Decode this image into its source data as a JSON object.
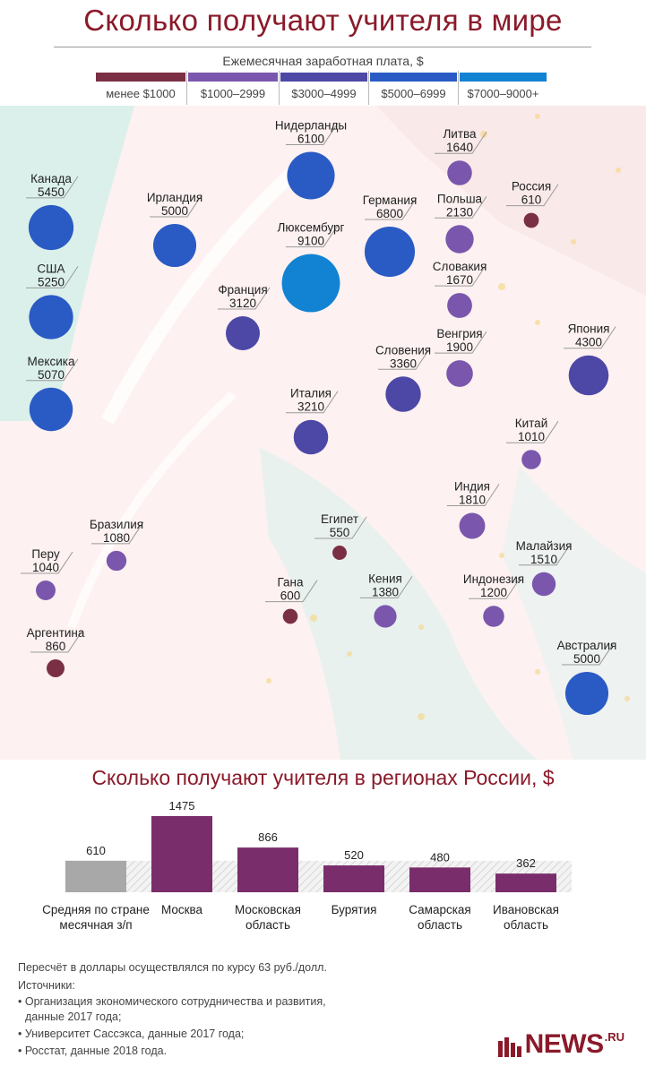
{
  "title": "Сколько получают учителя в мире",
  "legend": {
    "title": "Ежемесячная заработная плата, $",
    "bins": [
      {
        "label": "менее $1000",
        "color": "#7b2f45"
      },
      {
        "label": "$1000–2999",
        "color": "#7a57ad"
      },
      {
        "label": "$3000–4999",
        "color": "#4d48a6"
      },
      {
        "label": "$5000–6999",
        "color": "#2a5bc4"
      },
      {
        "label": "$7000–9000+",
        "color": "#1283d3"
      }
    ]
  },
  "chart_data": [
    {
      "type": "scatter",
      "title": "Сколько получают учителя в мире",
      "ylabel": "Ежемесячная заработная плата, $",
      "points": [
        {
          "country": "Нидерланды",
          "value": 6100
        },
        {
          "country": "Литва",
          "value": 1640
        },
        {
          "country": "Россия",
          "value": 610
        },
        {
          "country": "Канада",
          "value": 5450
        },
        {
          "country": "Ирландия",
          "value": 5000
        },
        {
          "country": "Германия",
          "value": 6800
        },
        {
          "country": "Польша",
          "value": 2130
        },
        {
          "country": "Люксембург",
          "value": 9100
        },
        {
          "country": "США",
          "value": 5250
        },
        {
          "country": "Словакия",
          "value": 1670
        },
        {
          "country": "Франция",
          "value": 3120
        },
        {
          "country": "Венгрия",
          "value": 1900
        },
        {
          "country": "Япония",
          "value": 4300
        },
        {
          "country": "Мексика",
          "value": 5070
        },
        {
          "country": "Словения",
          "value": 3360
        },
        {
          "country": "Италия",
          "value": 3210
        },
        {
          "country": "Китай",
          "value": 1010
        },
        {
          "country": "Индия",
          "value": 1810
        },
        {
          "country": "Бразилия",
          "value": 1080
        },
        {
          "country": "Египет",
          "value": 550
        },
        {
          "country": "Малайзия",
          "value": 1510
        },
        {
          "country": "Перу",
          "value": 1040
        },
        {
          "country": "Гана",
          "value": 600
        },
        {
          "country": "Кения",
          "value": 1380
        },
        {
          "country": "Индонезия",
          "value": 1200
        },
        {
          "country": "Аргентина",
          "value": 860
        },
        {
          "country": "Австралия",
          "value": 5000
        }
      ]
    },
    {
      "type": "bar",
      "title": "Сколько получают учителя в регионах России, $",
      "categories": [
        "Средняя по стране\nмесячная з/п",
        "Москва",
        "Московская\nобласть",
        "Бурятия",
        "Самарская\nобласть",
        "Ивановская\nобласть"
      ],
      "values": [
        610,
        1475,
        866,
        520,
        480,
        362
      ],
      "colors": [
        "#a8a8a8",
        "#7a2d6b",
        "#7a2d6b",
        "#7a2d6b",
        "#7a2d6b",
        "#7a2d6b"
      ],
      "reference_value": 610
    }
  ],
  "notes": {
    "rate": "Пересчёт в доллары осуществлялся по курсу 63 руб./долл.",
    "sources_title": "Источники:",
    "sources": [
      "• Организация экономического сотрудничества и развития,",
      "  данные 2017 года;",
      "• Университет Сассэкса, данные 2017 года;",
      "• Росстат, данные 2018 года."
    ]
  },
  "logo": {
    "name": "NEWS",
    "suffix": ".RU"
  }
}
